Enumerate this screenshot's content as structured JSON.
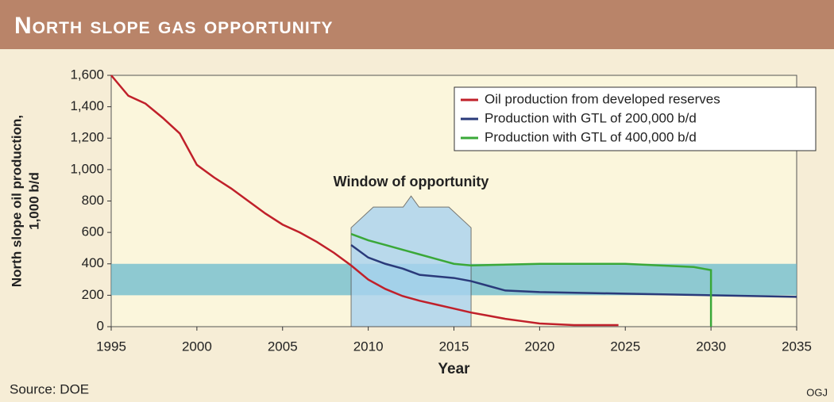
{
  "chart_data": {
    "type": "line",
    "title": "North slope gas opportunity",
    "ylabel": [
      "North slope oil production,",
      "1,000 b/d"
    ],
    "xlabel": "Year",
    "source": "Source: DOE",
    "credit": "OGJ",
    "xlim": [
      1995,
      2035
    ],
    "xticks": [
      1995,
      2000,
      2005,
      2010,
      2015,
      2020,
      2025,
      2030,
      2035
    ],
    "ylim": [
      0,
      1600
    ],
    "yticks": [
      0,
      200,
      400,
      600,
      800,
      {
        "value": 1000,
        "label": "1,000"
      },
      {
        "value": 1200,
        "label": "1,200"
      },
      {
        "value": 1400,
        "label": "1,400"
      },
      {
        "value": 1600,
        "label": "1,600"
      }
    ],
    "band": {
      "ylim": [
        200,
        400
      ],
      "color": "#5fb6cc"
    },
    "annotation": {
      "text": "Window of opportunity",
      "xlim": [
        2009,
        2016
      ],
      "color": "#a9d3ef"
    },
    "legend": "upper right",
    "series": [
      {
        "name": "Oil production from developed reserves",
        "color": "#c0202a",
        "x": [
          1995,
          1996,
          1997,
          1998,
          1999,
          2000,
          2001,
          2002,
          2003,
          2004,
          2005,
          2006,
          2007,
          2008,
          2009,
          2010,
          2011,
          2012,
          2013,
          2014,
          2015,
          2016,
          2017,
          2018,
          2019,
          2020,
          2021,
          2022,
          2023,
          2024.6
        ],
        "values": [
          1600,
          1470,
          1420,
          1330,
          1230,
          1030,
          950,
          880,
          800,
          720,
          650,
          600,
          540,
          470,
          390,
          300,
          240,
          195,
          165,
          140,
          115,
          90,
          70,
          50,
          35,
          20,
          15,
          10,
          10,
          10
        ]
      },
      {
        "name": "Production with GTL of 200,000 b/d",
        "color": "#2a3a7a",
        "x": [
          2009,
          2010,
          2011,
          2012,
          2013,
          2014,
          2015,
          2016,
          2017,
          2018,
          2020,
          2025,
          2030,
          2035
        ],
        "values": [
          520,
          440,
          400,
          370,
          330,
          320,
          310,
          290,
          260,
          230,
          220,
          210,
          200,
          190
        ]
      },
      {
        "name": "Production with GTL of 400,000 b/d",
        "color": "#3aa838",
        "x": [
          2009,
          2010,
          2011,
          2012,
          2013,
          2014,
          2015,
          2016,
          2020,
          2025,
          2029,
          2030,
          2030
        ],
        "values": [
          590,
          550,
          520,
          490,
          460,
          430,
          400,
          390,
          400,
          400,
          380,
          360,
          0
        ]
      }
    ]
  }
}
